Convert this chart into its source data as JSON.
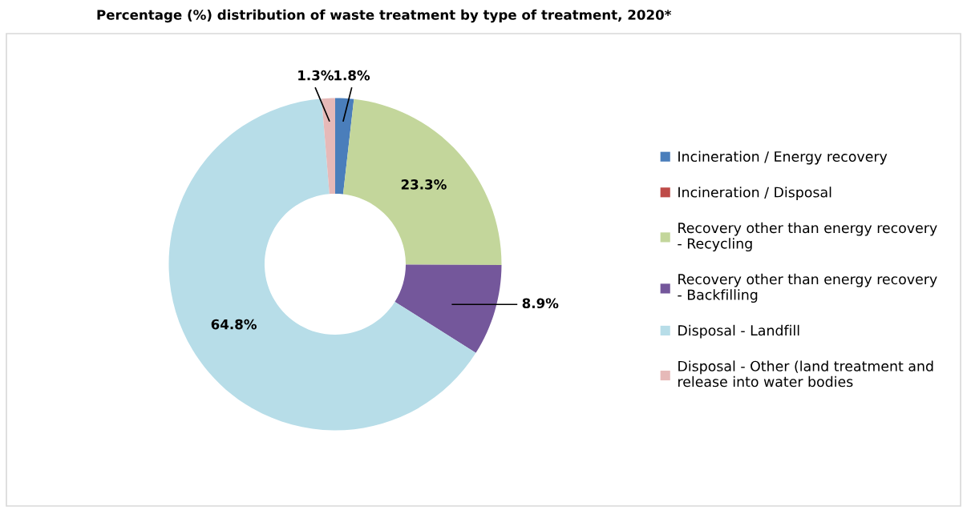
{
  "chart_data": {
    "type": "donut",
    "title": "Percentage (%) distribution of waste treatment by type of treatment, 2020*",
    "categories": [
      "Incineration / Energy recovery",
      "Incineration / Disposal",
      "Recovery other than energy recovery\n- Recycling",
      "Recovery other than energy recovery\n- Backfilling",
      "Disposal - Landfill",
      "Disposal - Other (land treatment and\nrelease into water bodies"
    ],
    "values": [
      1.8,
      0,
      23.3,
      8.9,
      64.8,
      1.3
    ],
    "value_labels": [
      "1.8%",
      null,
      "23.3%",
      "8.9%",
      "64.8%",
      "1.3%"
    ],
    "colors": [
      "#4a7ebb",
      "#be4b48",
      "#c3d69b",
      "#74579b",
      "#b7dde8",
      "#e6b9b8"
    ],
    "legend": "right"
  }
}
